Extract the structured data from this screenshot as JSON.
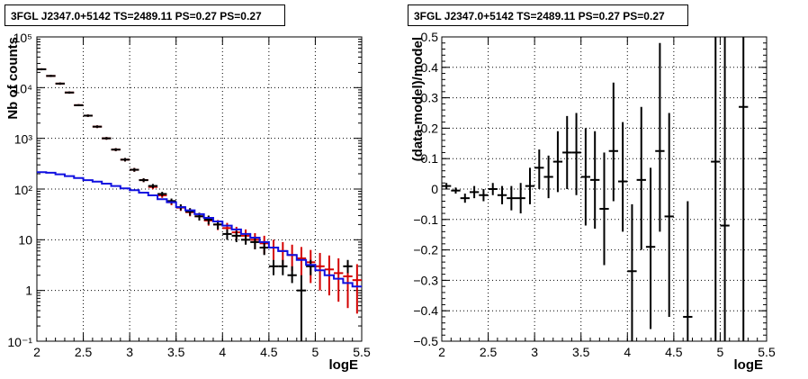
{
  "chart_data": [
    {
      "type": "scatter",
      "title": "3FGL J2347.0+5142 TS=2489.11 PS=0.27 PS=0.27",
      "xlabel": "logE",
      "ylabel": "Nb of counts",
      "xlim": [
        2,
        5.5
      ],
      "ylim": [
        0.1,
        100000
      ],
      "yscale": "log",
      "grid": true,
      "x_ticks": [
        "2",
        "2.5",
        "3",
        "3.5",
        "4",
        "4.5",
        "5",
        "5.5"
      ],
      "y_ticks": [
        "10⁻¹",
        "1",
        "10",
        "10²",
        "10³",
        "10⁴",
        "10⁵"
      ],
      "series": [
        {
          "style": "error-bars",
          "color": "#d40000",
          "x": [
            2.05,
            2.15,
            2.25,
            2.35,
            2.45,
            2.55,
            2.65,
            2.75,
            2.85,
            2.95,
            3.05,
            3.15,
            3.25,
            3.35,
            3.45,
            3.55,
            3.65,
            3.75,
            3.85,
            3.95,
            4.05,
            4.15,
            4.25,
            4.35,
            4.45,
            4.55,
            4.65,
            4.75,
            4.85,
            4.95,
            5.05,
            5.15,
            5.25,
            5.35,
            5.45
          ],
          "y": [
            23000,
            17000,
            12000,
            8000,
            4500,
            2800,
            1700,
            1000,
            600,
            380,
            240,
            150,
            110,
            75,
            55,
            43,
            35,
            29,
            24,
            20,
            17,
            14,
            12,
            10,
            8.5,
            7,
            6,
            5,
            4.3,
            3.6,
            3,
            2.6,
            2.2,
            1.9,
            1.6
          ],
          "y_low": [
            22000,
            16200,
            11400,
            7600,
            4300,
            2650,
            1600,
            940,
            560,
            350,
            220,
            137,
            99,
            67,
            48,
            37,
            29,
            24,
            19,
            15.5,
            12.5,
            10,
            8.2,
            6.5,
            5.2,
            4,
            3.2,
            2.4,
            1.9,
            1.4,
            1,
            0.8,
            0.6,
            0.45,
            0.35
          ],
          "y_high": [
            24000,
            17800,
            12600,
            8400,
            4700,
            2950,
            1800,
            1060,
            640,
            410,
            260,
            163,
            121,
            83,
            62,
            49,
            41,
            34,
            29,
            24.5,
            21.5,
            18,
            16,
            13.5,
            12,
            10,
            9,
            8,
            7.2,
            6.3,
            5.5,
            4.9,
            4.3,
            3.8,
            3.3
          ]
        },
        {
          "style": "error-bars",
          "color": "#000000",
          "x": [
            2.05,
            2.15,
            2.25,
            2.35,
            2.45,
            2.55,
            2.65,
            2.75,
            2.85,
            2.95,
            3.05,
            3.15,
            3.25,
            3.35,
            3.45,
            3.55,
            3.65,
            3.75,
            3.85,
            3.95,
            4.05,
            4.15,
            4.25,
            4.35,
            4.45,
            4.55,
            4.65,
            4.75,
            4.85,
            4.95,
            5.35
          ],
          "y": [
            23000,
            17000,
            12000,
            8000,
            4500,
            2800,
            1700,
            1000,
            600,
            380,
            240,
            150,
            115,
            80,
            58,
            44,
            36,
            29,
            25,
            20,
            13,
            12,
            10,
            9,
            7,
            3,
            3,
            2,
            1,
            3,
            3
          ],
          "y_low": [
            22000,
            16200,
            11400,
            7600,
            4300,
            2650,
            1600,
            940,
            560,
            350,
            220,
            137,
            104,
            72,
            51,
            38,
            30,
            24,
            20,
            16,
            10,
            9,
            8,
            6.5,
            5,
            2,
            2,
            1.4,
            0.1,
            2,
            2.2
          ],
          "y_high": [
            24000,
            17800,
            12600,
            8400,
            4700,
            2950,
            1800,
            1060,
            640,
            410,
            260,
            163,
            126,
            88,
            65,
            50,
            42,
            34,
            30,
            24,
            16,
            15,
            12.5,
            11.5,
            9,
            4,
            4,
            3,
            2,
            4,
            4
          ]
        },
        {
          "style": "step",
          "color": "#1010e0",
          "x": [
            2.0,
            2.1,
            2.2,
            2.3,
            2.4,
            2.5,
            2.6,
            2.7,
            2.8,
            2.9,
            3.0,
            3.1,
            3.2,
            3.3,
            3.4,
            3.5,
            3.6,
            3.7,
            3.8,
            3.9,
            4.0,
            4.1,
            4.2,
            4.3,
            4.4,
            4.5,
            4.6,
            4.7,
            4.8,
            4.9,
            5.0,
            5.1,
            5.2,
            5.3,
            5.4
          ],
          "y": [
            215,
            210,
            195,
            180,
            165,
            150,
            140,
            128,
            115,
            103,
            95,
            85,
            75,
            63,
            55,
            44,
            38,
            32,
            27,
            23,
            19,
            16,
            13,
            11,
            9,
            7,
            6,
            5,
            4,
            3.2,
            2.5,
            2,
            1.7,
            1.4,
            1.2
          ]
        }
      ]
    },
    {
      "type": "scatter",
      "title": "3FGL J2347.0+5142 TS=2489.11 PS=0.27 PS=0.27",
      "xlabel": "logE",
      "ylabel": "(data-model)/model",
      "xlim": [
        2,
        5.5
      ],
      "ylim": [
        -0.5,
        0.5
      ],
      "grid": true,
      "x_ticks": [
        "2",
        "2.5",
        "3",
        "3.5",
        "4",
        "4.5",
        "5",
        "5.5"
      ],
      "y_ticks": [
        "−0.5",
        "−0.4",
        "−0.3",
        "−0.2",
        "−0.1",
        "0",
        "0.1",
        "0.2",
        "0.3",
        "0.4",
        "0.5"
      ],
      "series": [
        {
          "style": "error-bars",
          "color": "#000000",
          "x": [
            2.05,
            2.15,
            2.25,
            2.35,
            2.45,
            2.55,
            2.65,
            2.75,
            2.85,
            2.95,
            3.05,
            3.15,
            3.25,
            3.35,
            3.45,
            3.55,
            3.65,
            3.75,
            3.85,
            3.95,
            4.05,
            4.15,
            4.25,
            4.35,
            4.45,
            4.65,
            4.95,
            5.05,
            5.25
          ],
          "y": [
            0.01,
            -0.005,
            -0.03,
            -0.01,
            -0.02,
            0.0,
            -0.02,
            -0.03,
            -0.03,
            0.01,
            0.07,
            0.04,
            0.09,
            0.12,
            0.12,
            0.04,
            0.03,
            -0.065,
            0.125,
            0.025,
            -0.27,
            0.03,
            -0.19,
            0.125,
            -0.09,
            -0.42,
            0.09,
            -0.12,
            0.27
          ],
          "y_low": [
            0.0,
            -0.015,
            -0.045,
            -0.03,
            -0.04,
            -0.02,
            -0.05,
            -0.07,
            -0.08,
            -0.05,
            0.0,
            -0.03,
            -0.01,
            0.0,
            -0.02,
            -0.12,
            -0.13,
            -0.25,
            -0.04,
            -0.14,
            -0.5,
            -0.2,
            -0.46,
            -0.14,
            -0.42,
            -0.5,
            -0.5,
            -0.5,
            -0.5
          ],
          "y_high": [
            0.02,
            0.005,
            -0.015,
            0.01,
            0.0,
            0.02,
            0.01,
            0.01,
            0.02,
            0.07,
            0.13,
            0.11,
            0.19,
            0.24,
            0.25,
            0.2,
            0.19,
            0.12,
            0.35,
            0.22,
            -0.05,
            0.27,
            0.07,
            0.48,
            0.25,
            -0.04,
            0.5,
            0.5,
            0.5
          ]
        }
      ]
    }
  ]
}
